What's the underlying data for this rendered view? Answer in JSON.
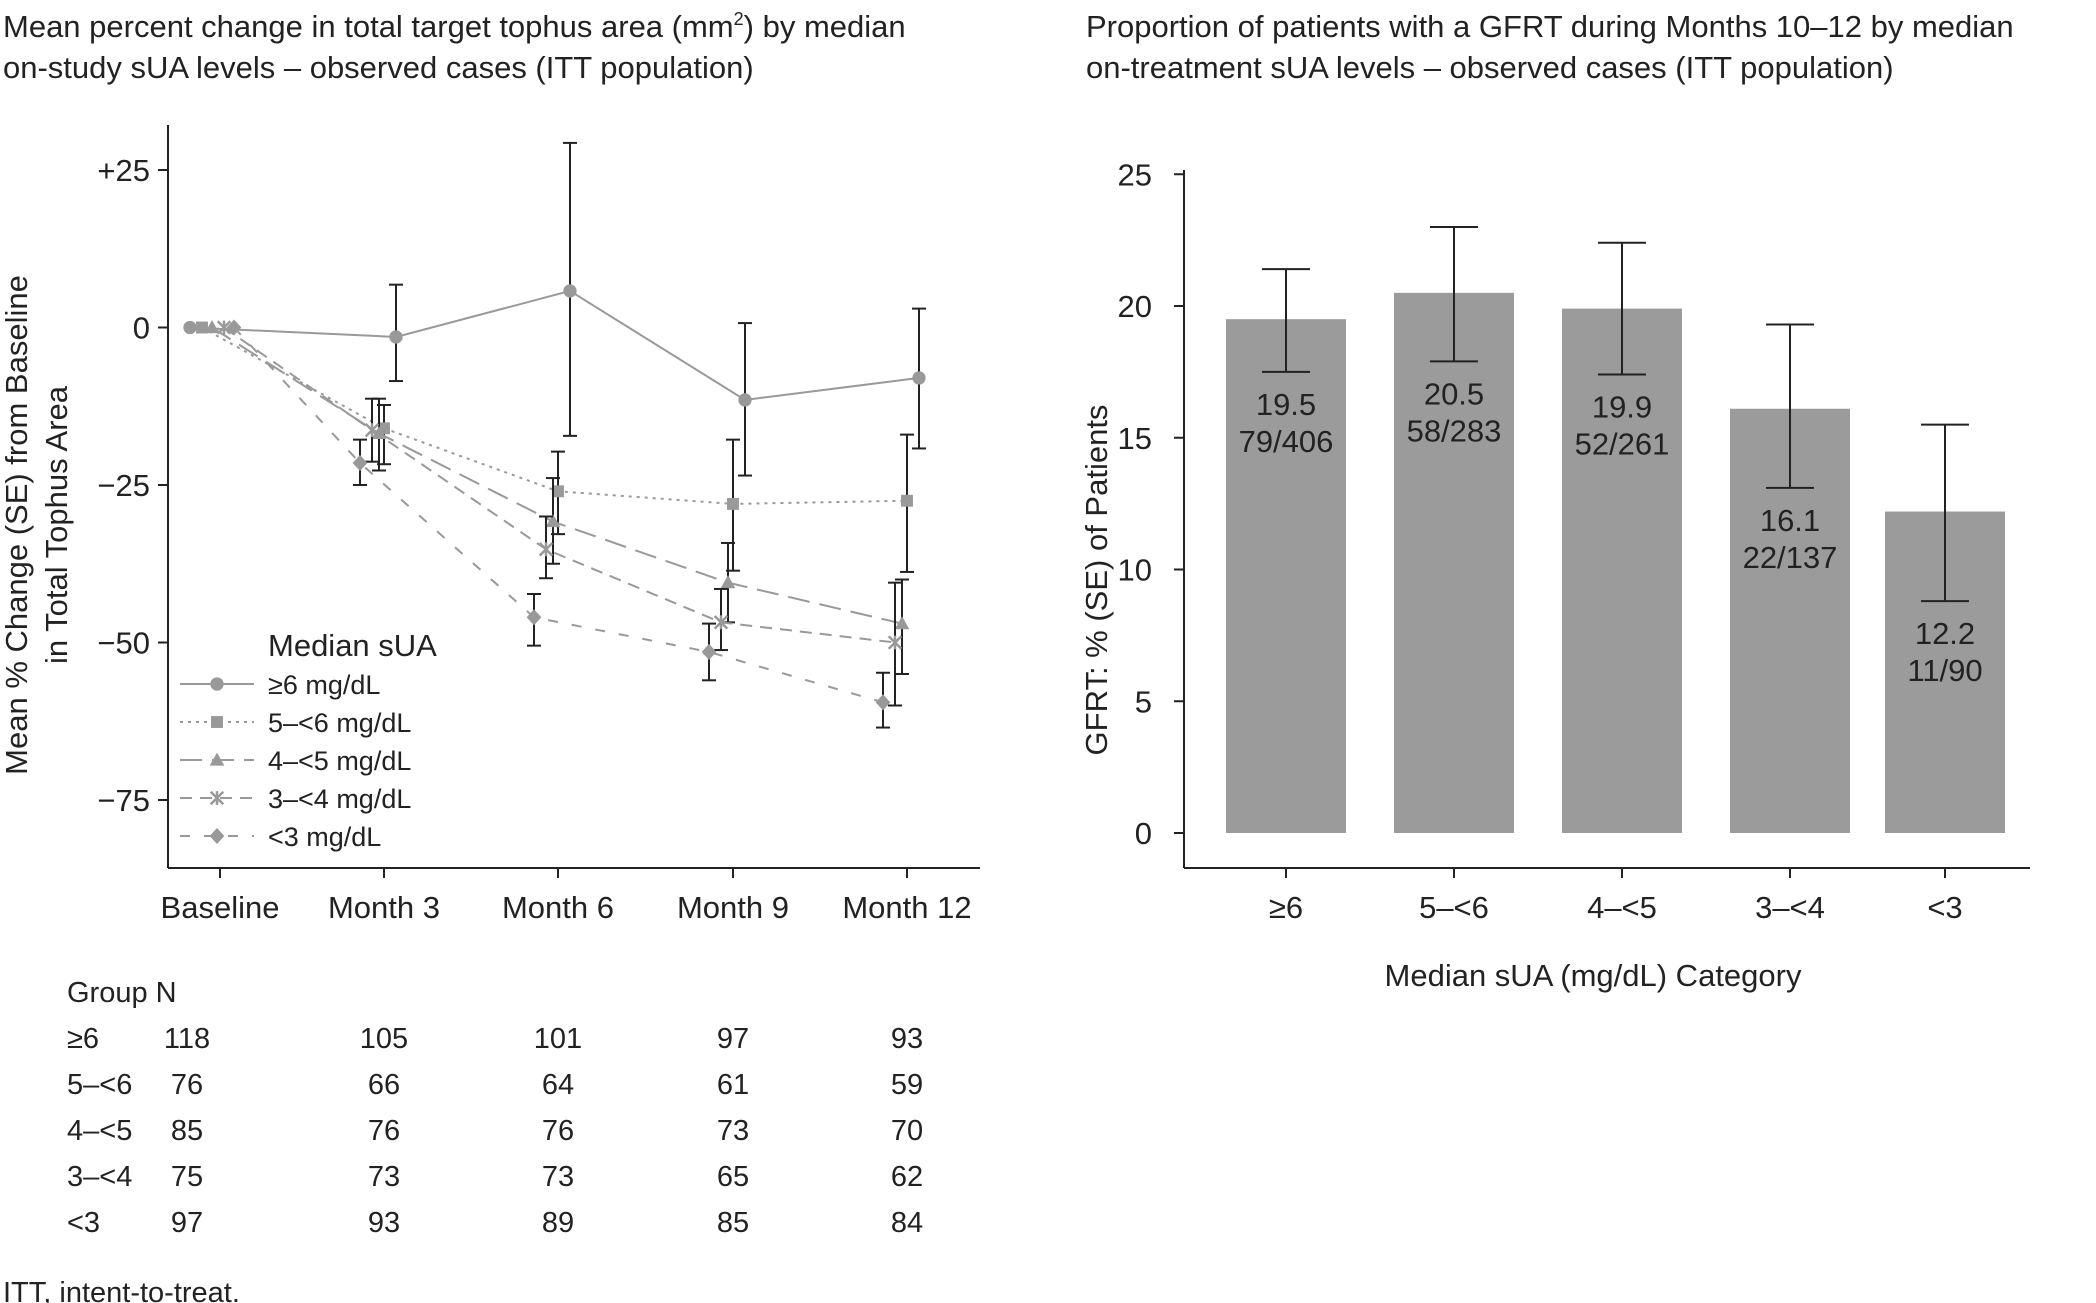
{
  "title_left_line1": "Mean percent change in total target tophus area (mm",
  "title_left_sup": "2",
  "title_left_line1_end": ") by median",
  "title_left_line2": "on-study sUA levels – observed cases (ITT population)",
  "title_right_line1": "Proportion of patients with a GFRT during Months 10–12 by median",
  "title_right_line2": "on-treatment sUA levels – observed cases (ITT population)",
  "left_ylabel_line1": "Mean % Change (SE) from Baseline",
  "left_ylabel_line2": "in Total Tophus Area",
  "right_ylabel": "GFRT: % (SE) of Patients",
  "right_xlabel": "Median sUA (mg/dL) Category",
  "legend_title": "Median sUA",
  "table_header": "Group N",
  "footnote": "ITT, intent-to-treat.",
  "colors": {
    "series": "#999999",
    "bar": "#9b9b9b",
    "axis": "#222222",
    "errorbar": "#222222"
  },
  "chart_data": [
    {
      "type": "line",
      "title": "Mean percent change in total target tophus area (mm2) by median on-study sUA levels – observed cases (ITT population)",
      "xlabel": "",
      "ylabel": "Mean % Change (SE) from Baseline in Total Tophus Area",
      "categories": [
        "Baseline",
        "Month 3",
        "Month 6",
        "Month 9",
        "Month 12"
      ],
      "yticks": [
        25,
        0,
        -25,
        -50,
        -75
      ],
      "ytick_labels": [
        "+25",
        "0",
        "−25",
        "−50",
        "−75"
      ],
      "ylim": [
        -82,
        32
      ],
      "legend_position": "bottom-left",
      "series": [
        {
          "name": "≥6 mg/dL",
          "marker": "circle",
          "dash": "",
          "values": [
            0,
            -1.5,
            5.8,
            -11.5,
            -8.0
          ],
          "err_low": [
            0,
            -8.5,
            -17.2,
            -23.5,
            -19.2
          ],
          "err_high": [
            0,
            6.8,
            29.3,
            0.7,
            3.0
          ]
        },
        {
          "name": "5–<6 mg/dL",
          "marker": "square",
          "dash": "3 5",
          "values": [
            0,
            -16.0,
            -26.0,
            -28.0,
            -27.5
          ],
          "err_low": [
            0,
            -21.7,
            -32.8,
            -38.6,
            -38.8
          ],
          "err_high": [
            0,
            -12.3,
            -19.7,
            -17.8,
            -17.0
          ]
        },
        {
          "name": "4–<5 mg/dL",
          "marker": "triangle",
          "dash": "22 10",
          "values": [
            0,
            -16.8,
            -30.8,
            -40.5,
            -47.0
          ],
          "err_low": [
            0,
            -22.7,
            -37.5,
            -46.8,
            -55.0
          ],
          "err_high": [
            0,
            -11.3,
            -23.9,
            -34.2,
            -40.0
          ]
        },
        {
          "name": "3–<4 mg/dL",
          "marker": "star",
          "dash": "12 8",
          "values": [
            0,
            -16.3,
            -35.2,
            -46.8,
            -50.0
          ],
          "err_low": [
            0,
            -21.3,
            -39.8,
            -51.2,
            -60.0
          ],
          "err_high": [
            0,
            -11.3,
            -30.0,
            -41.5,
            -40.5
          ]
        },
        {
          "name": "<3 mg/dL",
          "marker": "diamond",
          "dash": "10 14",
          "values": [
            0,
            -21.5,
            -46.0,
            -51.5,
            -59.5
          ],
          "err_low": [
            0,
            -25.0,
            -50.5,
            -56.0,
            -63.5
          ],
          "err_high": [
            0,
            -17.8,
            -42.3,
            -47.0,
            -54.8
          ]
        }
      ],
      "table": {
        "rows": [
          {
            "group": "≥6",
            "n": [
              "118",
              "105",
              "101",
              "97",
              "93"
            ]
          },
          {
            "group": "5–<6",
            "n": [
              "76",
              "66",
              "64",
              "61",
              "59"
            ]
          },
          {
            "group": "4–<5",
            "n": [
              "85",
              "76",
              "76",
              "73",
              "70"
            ]
          },
          {
            "group": "3–<4",
            "n": [
              "75",
              "73",
              "73",
              "65",
              "62"
            ]
          },
          {
            "group": "<3",
            "n": [
              "97",
              "93",
              "89",
              "85",
              "84"
            ]
          }
        ]
      }
    },
    {
      "type": "bar",
      "title": "Proportion of patients with a GFRT during Months 10–12 by median on-treatment sUA levels – observed cases (ITT population)",
      "xlabel": "Median sUA (mg/dL) Category",
      "ylabel": "GFRT: % (SE) of Patients",
      "categories": [
        "≥6",
        "5–<6",
        "4–<5",
        "3–<4",
        "<3"
      ],
      "values": [
        19.5,
        20.5,
        19.9,
        16.1,
        12.2
      ],
      "value_labels": [
        "19.5",
        "20.5",
        "19.9",
        "16.1",
        "12.2"
      ],
      "count_labels": [
        "79/406",
        "58/283",
        "52/261",
        "22/137",
        "11/90"
      ],
      "err_low": [
        17.5,
        17.9,
        17.4,
        13.1,
        8.8
      ],
      "err_high": [
        21.4,
        23.0,
        22.4,
        19.3,
        15.5
      ],
      "yticks": [
        0,
        5,
        10,
        15,
        20,
        25
      ],
      "ylim": [
        -1.4,
        26.8
      ]
    }
  ]
}
